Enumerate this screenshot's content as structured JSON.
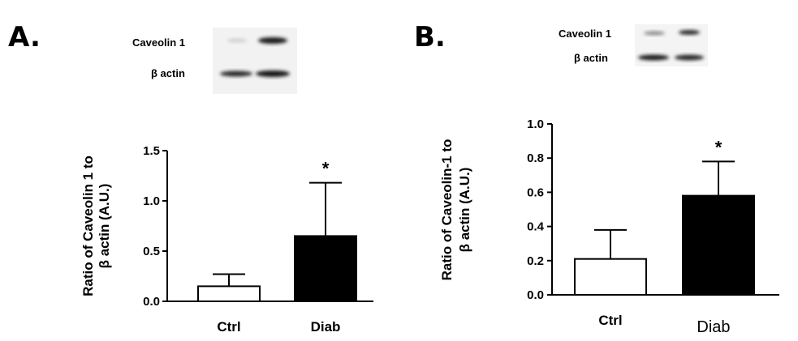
{
  "chart_data": [
    {
      "panel": "A.",
      "type": "bar",
      "categories": [
        "Ctrl",
        "Diab"
      ],
      "values": [
        0.15,
        0.65
      ],
      "error_upper": [
        0.27,
        1.18
      ],
      "significance": [
        "",
        "*"
      ],
      "bar_colors": [
        "#ffffff",
        "#000000"
      ],
      "ylabel_line1": "Ratio of Caveolin 1 to",
      "ylabel_line2": "β actin  (A.U.)",
      "ylim": [
        0,
        1.5
      ],
      "yticks": [
        "0.0",
        "0.5",
        "1.0",
        "1.5"
      ],
      "blot_labels": [
        "Caveolin 1",
        "β actin"
      ]
    },
    {
      "panel": "B.",
      "type": "bar",
      "categories": [
        "Ctrl",
        "Diab"
      ],
      "values": [
        0.21,
        0.58
      ],
      "error_upper": [
        0.38,
        0.78
      ],
      "significance": [
        "",
        "*"
      ],
      "bar_colors": [
        "#ffffff",
        "#000000"
      ],
      "ylabel_line1": "Ratio of Caveolin-1 to",
      "ylabel_line2": "β actin  (A.U.)",
      "ylim": [
        0,
        1.0
      ],
      "yticks": [
        "0.0",
        "0.2",
        "0.4",
        "0.6",
        "0.8",
        "1.0"
      ],
      "blot_labels": [
        "Caveolin 1",
        "β actin"
      ]
    }
  ]
}
